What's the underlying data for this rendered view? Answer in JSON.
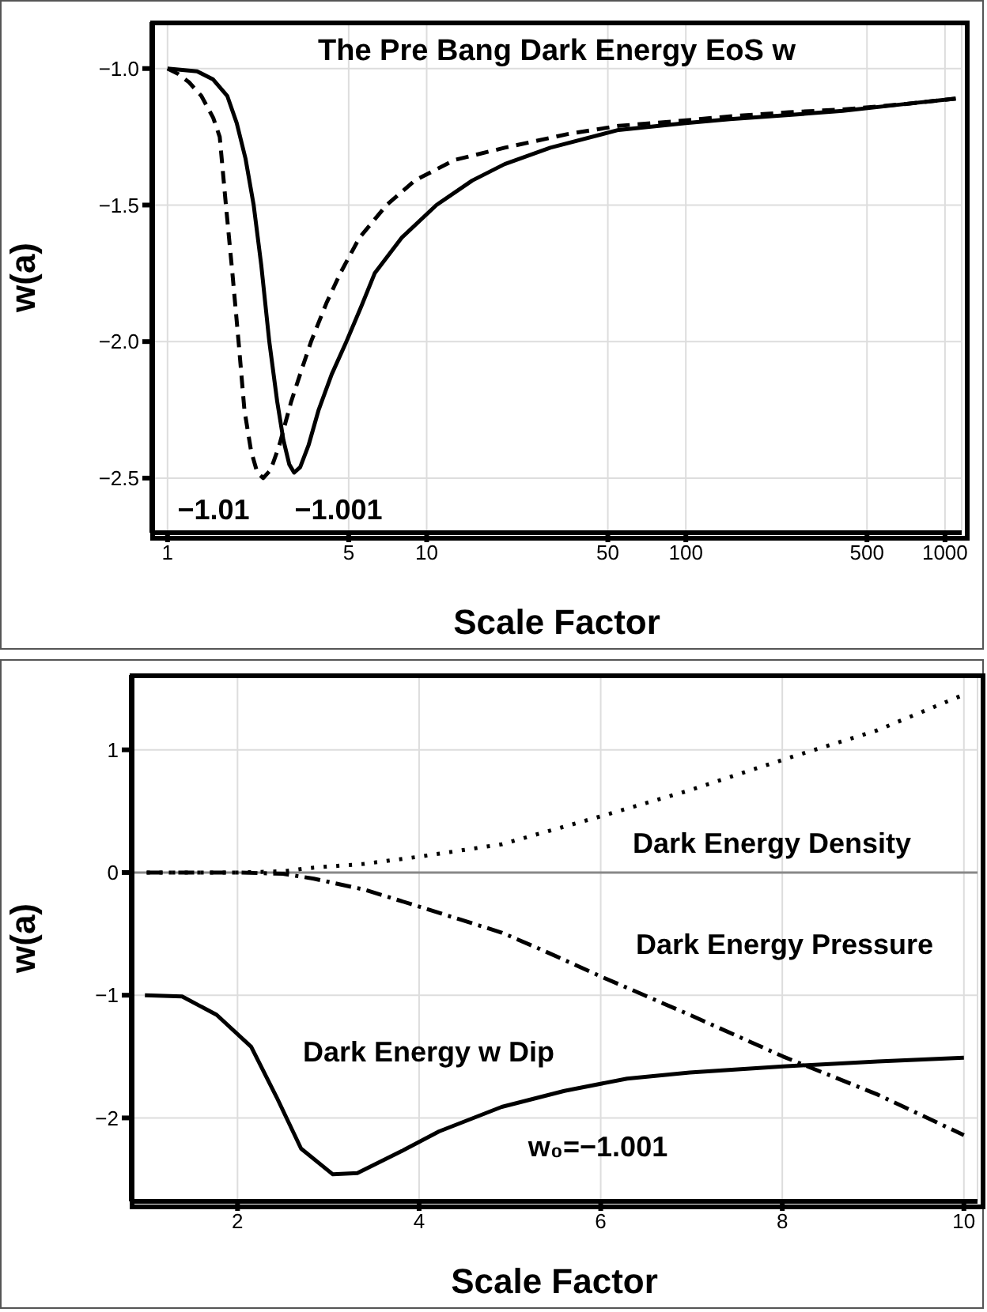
{
  "chart_data": [
    {
      "type": "line",
      "title": "The Pre Bang Dark Energy EoS w",
      "xlabel": "Scale Factor",
      "ylabel": "w(a)",
      "log": "x",
      "grid": true,
      "marker": "none",
      "xlim": [
        0.87,
        1160
      ],
      "xticks": [
        1,
        5,
        10,
        50,
        100,
        500,
        1000
      ],
      "ylim": [
        -2.7,
        -0.83
      ],
      "yticks": [
        {
          "value": -1,
          "label": "−1.0"
        },
        {
          "value": -1.5,
          "label": "−1.5"
        },
        {
          "value": -2,
          "label": "−2.0"
        },
        {
          "value": -2.5,
          "label": "−2.5"
        }
      ],
      "series": [
        {
          "color": "#000000",
          "line_style": "solid",
          "x": [
            1,
            1.3,
            1.5,
            1.7,
            1.85,
            2.0,
            2.15,
            2.3,
            2.47,
            2.65,
            2.8,
            2.95,
            3.08,
            3.25,
            3.5,
            3.83,
            4.3,
            4.9,
            5.6,
            6.3,
            8,
            10.9,
            15,
            20,
            30,
            55,
            100,
            148,
            250,
            403,
            700,
            1100
          ],
          "values": [
            -1.0,
            -1.01,
            -1.04,
            -1.1,
            -1.2,
            -1.33,
            -1.5,
            -1.72,
            -2.0,
            -2.22,
            -2.36,
            -2.45,
            -2.48,
            -2.46,
            -2.38,
            -2.25,
            -2.12,
            -2.0,
            -1.87,
            -1.75,
            -1.62,
            -1.5,
            -1.41,
            -1.35,
            -1.29,
            -1.225,
            -1.2,
            -1.185,
            -1.17,
            -1.155,
            -1.13,
            -1.11
          ]
        },
        {
          "color": "#000000",
          "line_style": "dashed",
          "x": [
            1,
            1.1,
            1.21,
            1.35,
            1.5,
            1.59,
            1.68,
            1.78,
            1.88,
            1.98,
            2.1,
            2.22,
            2.34,
            2.5,
            2.7,
            3.0,
            3.3,
            3.58,
            4.1,
            4.64,
            5.5,
            7.0,
            9,
            12.8,
            20,
            35,
            55,
            100,
            148,
            250,
            403,
            700,
            1100
          ],
          "values": [
            -1.0,
            -1.02,
            -1.05,
            -1.1,
            -1.18,
            -1.25,
            -1.5,
            -1.75,
            -2.0,
            -2.25,
            -2.4,
            -2.48,
            -2.5,
            -2.47,
            -2.38,
            -2.22,
            -2.1,
            -2.0,
            -1.86,
            -1.75,
            -1.62,
            -1.5,
            -1.41,
            -1.335,
            -1.29,
            -1.24,
            -1.21,
            -1.19,
            -1.175,
            -1.16,
            -1.15,
            -1.13,
            -1.11
          ]
        }
      ],
      "annotations": [
        "−1.01",
        "−1.001"
      ]
    },
    {
      "type": "line",
      "xlabel": "Scale Factor",
      "ylabel": "w(a)",
      "grid": true,
      "marker": "none",
      "xlim": [
        0.83,
        10.15
      ],
      "xticks": [
        2,
        4,
        6,
        8,
        10
      ],
      "ylim": [
        -2.68,
        1.61
      ],
      "yticks": [
        {
          "value": 1,
          "label": "1"
        },
        0,
        {
          "value": -1,
          "label": "−1"
        },
        {
          "value": -2,
          "label": "−2"
        }
      ],
      "ref_lines": [
        {
          "axis": "y",
          "value": 0,
          "color": "#888888"
        }
      ],
      "series": [
        {
          "color": "#000000",
          "line_style": "dotted",
          "x": [
            1,
            1.5,
            2,
            2.5,
            2.84,
            3.39,
            4.01,
            4.91,
            6.01,
            6.98,
            8.01,
            9.05,
            10
          ],
          "values": [
            0,
            0,
            0,
            0.01,
            0.04,
            0.07,
            0.13,
            0.23,
            0.46,
            0.67,
            0.92,
            1.16,
            1.45
          ]
        },
        {
          "color": "#000000",
          "line_style": "dashed",
          "x": [
            1,
            1.5,
            2,
            2.5,
            2.84,
            3.4,
            4.01,
            4.91,
            5.32,
            6.01,
            6.98,
            8.01,
            9.05,
            10
          ],
          "values": [
            0,
            0,
            0,
            -0.01,
            -0.05,
            -0.14,
            -0.28,
            -0.49,
            -0.62,
            -0.85,
            -1.16,
            -1.5,
            -1.81,
            -2.14
          ]
        },
        {
          "color": "#000000",
          "line_style": "solid",
          "x": [
            0.98,
            1.39,
            1.77,
            2.15,
            2.43,
            2.7,
            3.05,
            3.32,
            3.81,
            4.22,
            4.91,
            5.6,
            6.29,
            6.98,
            8.01,
            9.05,
            10
          ],
          "values": [
            -1.0,
            -1.01,
            -1.16,
            -1.42,
            -1.83,
            -2.25,
            -2.46,
            -2.45,
            -2.27,
            -2.11,
            -1.91,
            -1.78,
            -1.68,
            -1.63,
            -1.58,
            -1.54,
            -1.51
          ]
        }
      ],
      "annotations": [
        "Dark Energy Density",
        "Dark Energy Pressure",
        "Dark Energy w Dip",
        "w₀=−1.001"
      ]
    }
  ]
}
